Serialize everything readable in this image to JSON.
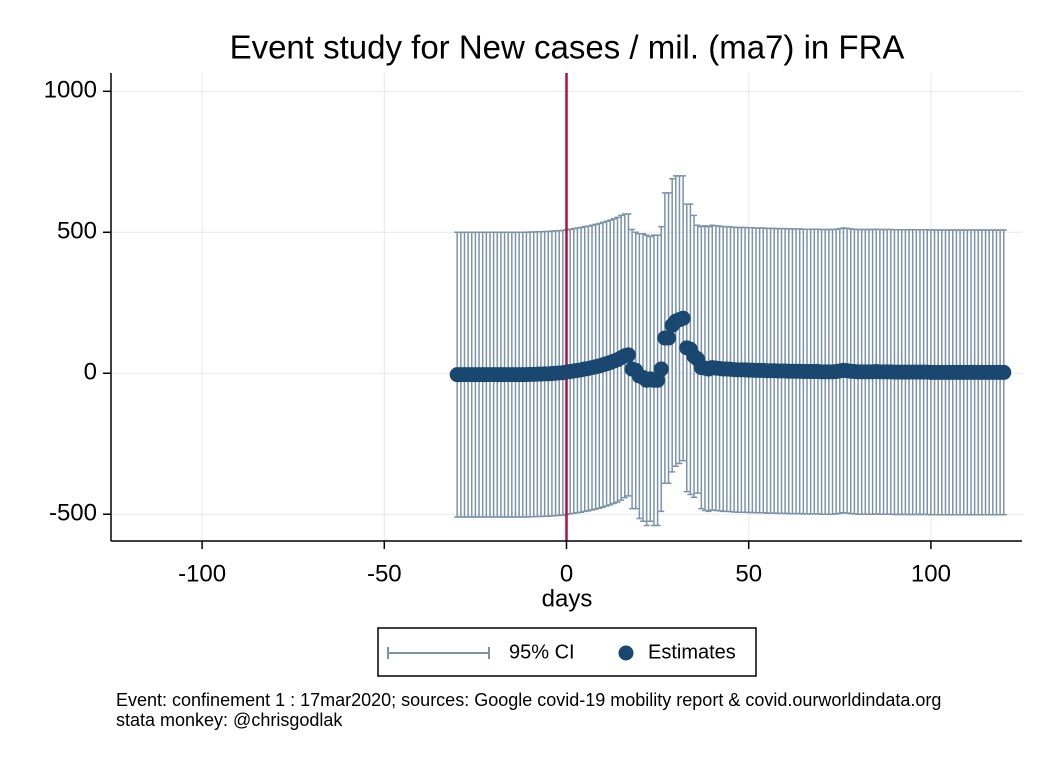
{
  "chart_data": {
    "type": "scatter",
    "title": "Event study for New cases / mil. (ma7) in FRA",
    "xlabel": "days",
    "footnote": [
      "Event: confinement 1 : 17mar2020; sources: Google covid-19 mobility report & covid.ourworldindata.org",
      "stata monkey: @chrisgodlak"
    ],
    "xlim": [
      -125,
      125
    ],
    "ylim": [
      -595,
      1065
    ],
    "xticks": [
      -100,
      -50,
      0,
      50,
      100
    ],
    "yticks": [
      -500,
      0,
      500,
      1000
    ],
    "grid": true,
    "vline": 0,
    "vline_color": "#b01040",
    "ci_name": "95% CI",
    "ci_color": "#7b93a8",
    "name": "Estimates",
    "color": "#1a476f",
    "legend": "bottom",
    "x": [
      -30,
      -29,
      -28,
      -27,
      -26,
      -25,
      -24,
      -23,
      -22,
      -21,
      -20,
      -19,
      -18,
      -17,
      -16,
      -15,
      -14,
      -13,
      -12,
      -11,
      -10,
      -9,
      -8,
      -7,
      -6,
      -5,
      -4,
      -3,
      -2,
      -1,
      0,
      1,
      2,
      3,
      4,
      5,
      6,
      7,
      8,
      9,
      10,
      11,
      12,
      13,
      14,
      15,
      16,
      17,
      18,
      19,
      20,
      21,
      22,
      23,
      24,
      25,
      26,
      27,
      28,
      29,
      30,
      31,
      32,
      33,
      34,
      35,
      36,
      37,
      38,
      39,
      40,
      41,
      42,
      43,
      44,
      45,
      46,
      47,
      48,
      49,
      50,
      51,
      52,
      53,
      54,
      55,
      56,
      57,
      58,
      59,
      60,
      61,
      62,
      63,
      64,
      65,
      66,
      67,
      68,
      69,
      70,
      71,
      72,
      73,
      74,
      75,
      76,
      77,
      78,
      79,
      80,
      81,
      82,
      83,
      84,
      85,
      86,
      87,
      88,
      89,
      90,
      91,
      92,
      93,
      94,
      95,
      96,
      97,
      98,
      99,
      100,
      101,
      102,
      103,
      104,
      105,
      106,
      107,
      108,
      109,
      110,
      111,
      112,
      113,
      114,
      115,
      116,
      117,
      118,
      119,
      120
    ],
    "values": [
      -5,
      -5,
      -5,
      -5,
      -5,
      -5,
      -5,
      -5,
      -5,
      -5,
      -5,
      -5,
      -5,
      -5,
      -5,
      -5,
      -5,
      -5,
      -5,
      -5,
      -4,
      -4,
      -3,
      -3,
      -2,
      -2,
      -1,
      0,
      1,
      2,
      4,
      6,
      8,
      10,
      12,
      15,
      17,
      20,
      23,
      26,
      30,
      34,
      38,
      43,
      48,
      55,
      62,
      65,
      15,
      10,
      -10,
      -15,
      -25,
      -20,
      -25,
      -25,
      15,
      125,
      125,
      170,
      185,
      190,
      195,
      90,
      85,
      60,
      50,
      20,
      18,
      15,
      20,
      18,
      17,
      15,
      15,
      14,
      13,
      12,
      12,
      12,
      11,
      11,
      10,
      10,
      10,
      9,
      9,
      9,
      8,
      8,
      8,
      7,
      7,
      7,
      7,
      6,
      6,
      6,
      6,
      6,
      5,
      5,
      5,
      5,
      6,
      8,
      10,
      9,
      7,
      6,
      5,
      5,
      5,
      5,
      5,
      6,
      5,
      5,
      5,
      5,
      4,
      4,
      4,
      4,
      4,
      4,
      4,
      4,
      4,
      4,
      3,
      3,
      3,
      3,
      3,
      3,
      3,
      3,
      3,
      3,
      3,
      3,
      3,
      3,
      3,
      3,
      3,
      3,
      3,
      3,
      3
    ],
    "errors": [
      505,
      505,
      505,
      505,
      505,
      505,
      505,
      505,
      505,
      505,
      505,
      505,
      505,
      505,
      505,
      505,
      505,
      505,
      505,
      505,
      505,
      505,
      505,
      505,
      505,
      505,
      505,
      505,
      505,
      505,
      505,
      505,
      505,
      505,
      505,
      505,
      505,
      505,
      505,
      505,
      505,
      505,
      505,
      505,
      505,
      505,
      503,
      500,
      495,
      490,
      505,
      510,
      515,
      505,
      515,
      515,
      505,
      515,
      515,
      520,
      515,
      510,
      505,
      510,
      515,
      500,
      475,
      500,
      505,
      505,
      505,
      505,
      505,
      505,
      505,
      505,
      505,
      505,
      505,
      505,
      505,
      505,
      505,
      505,
      505,
      505,
      505,
      505,
      505,
      505,
      505,
      505,
      505,
      505,
      505,
      505,
      505,
      505,
      505,
      505,
      505,
      505,
      505,
      505,
      505,
      505,
      505,
      505,
      505,
      505,
      505,
      505,
      505,
      505,
      505,
      505,
      505,
      505,
      505,
      505,
      505,
      505,
      505,
      505,
      505,
      505,
      505,
      505,
      505,
      505,
      505,
      505,
      505,
      505,
      505,
      505,
      505,
      505,
      505,
      505,
      505,
      505,
      505,
      505,
      505,
      505,
      505,
      505,
      505,
      505,
      505
    ]
  }
}
